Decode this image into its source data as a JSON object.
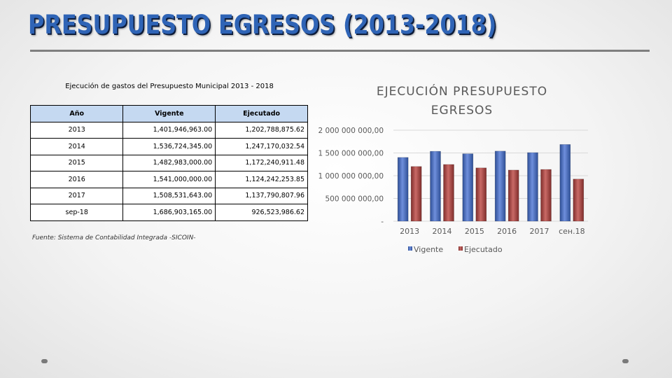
{
  "slide": {
    "title": "PRESUPUESTO EGRESOS (2013-2018)"
  },
  "table": {
    "caption": "Ejecución de gastos del Presupuesto Municipal 2013 - 2018",
    "headers": [
      "Año",
      "Vigente",
      "Ejecutado"
    ],
    "rows": [
      [
        "2013",
        "1,401,946,963.00",
        "1,202,788,875.62"
      ],
      [
        "2014",
        "1,536,724,345.00",
        "1,247,170,032.54"
      ],
      [
        "2015",
        "1,482,983,000.00",
        "1,172,240,911.48"
      ],
      [
        "2016",
        "1,541,000,000.00",
        "1,124,242,253.85"
      ],
      [
        "2017",
        "1,508,531,643.00",
        "1,137,790,807.96"
      ],
      [
        "sep-18",
        "1,686,903,165.00",
        "926,523,986.62"
      ]
    ],
    "source": "Fuente: Sistema de Contabilidad Integrada -SICOIN-"
  },
  "chart_title": {
    "line1": "EJECUCIÓN PRESUPUESTO",
    "line2": "EGRESOS"
  },
  "chart_data": {
    "type": "bar",
    "title": "EJECUCIÓN PRESUPUESTO EGRESOS",
    "categories": [
      "2013",
      "2014",
      "2015",
      "2016",
      "2017",
      "сен.18"
    ],
    "series": [
      {
        "name": "Vigente",
        "color": "#4f6fbf",
        "values": [
          1401946963.0,
          1536724345.0,
          1482983000.0,
          1541000000.0,
          1508531643.0,
          1686903165.0
        ]
      },
      {
        "name": "Ejecutado",
        "color": "#b04a48",
        "values": [
          1202788875.62,
          1247170032.54,
          1172240911.48,
          1124242253.85,
          1137790807.96,
          926523986.62
        ]
      }
    ],
    "ylim": [
      0,
      2000000000
    ],
    "yticks": [
      {
        "value": 0,
        "label": "-"
      },
      {
        "value": 500000000,
        "label": "500 000 000,00"
      },
      {
        "value": 1000000000,
        "label": "1 000 000 000,00"
      },
      {
        "value": 1500000000,
        "label": "1 500 000 000,00"
      },
      {
        "value": 2000000000,
        "label": "2 000 000 000,00"
      }
    ],
    "grid": true,
    "legend_position": "bottom"
  }
}
